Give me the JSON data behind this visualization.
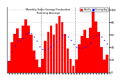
{
  "title": "Monthly Solar Energy Production Running Average",
  "title_line1": "Monthly Solar Energy Production",
  "title_line2": "Running Average",
  "bar_color": "#ff0000",
  "avg_color": "#0000ff",
  "background_color": "#ffffff",
  "grid_color": "#aaaaaa",
  "values": [
    18,
    48,
    62,
    70,
    55,
    75,
    85,
    75,
    60,
    35,
    20,
    8,
    22,
    50,
    65,
    75,
    60,
    78,
    90,
    80,
    62,
    38,
    22,
    10,
    20,
    45,
    58,
    68,
    55,
    72,
    100,
    82,
    65,
    40,
    20,
    28
  ],
  "running_avg": [
    18,
    33,
    43,
    50,
    50,
    55,
    62,
    64,
    63,
    57,
    50,
    42,
    37,
    36,
    38,
    42,
    44,
    49,
    55,
    59,
    59,
    57,
    52,
    45,
    41,
    39,
    39,
    41,
    43,
    47,
    55,
    59,
    60,
    57,
    52,
    46
  ],
  "ylim": [
    0,
    105
  ],
  "ytick_positions": [
    0,
    20,
    40,
    60,
    80,
    100
  ],
  "ytick_labels": [
    "0",
    "20",
    "40",
    "60",
    "80",
    "100"
  ],
  "n_bars": 36
}
